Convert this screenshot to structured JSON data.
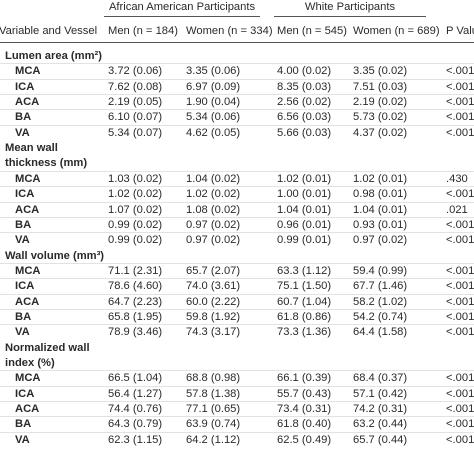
{
  "table": {
    "groups": [
      "African American Participants",
      "White Participants"
    ],
    "headers": [
      "Variable and Vessel",
      "Men (n = 184)",
      "Women (n = 334)",
      "Men (n = 545)",
      "Women (n = 689)",
      "P Value"
    ],
    "sections": [
      {
        "title": [
          "Lumen area (mm²)"
        ],
        "rows": [
          {
            "vessel": "MCA",
            "values": [
              "3.72 (0.06)",
              "3.35 (0.06)",
              "4.00 (0.02)",
              "3.35 (0.02)"
            ],
            "p": "<.001"
          },
          {
            "vessel": "ICA",
            "values": [
              "7.62 (0.08)",
              "6.97 (0.09)",
              "8.35 (0.03)",
              "7.51 (0.03)"
            ],
            "p": "<.001"
          },
          {
            "vessel": "ACA",
            "values": [
              "2.19 (0.05)",
              "1.90 (0.04)",
              "2.56 (0.02)",
              "2.19 (0.02)"
            ],
            "p": "<.001"
          },
          {
            "vessel": "BA",
            "values": [
              "6.10 (0.07)",
              "5.34 (0.06)",
              "6.56 (0.03)",
              "5.73 (0.02)"
            ],
            "p": "<.001"
          },
          {
            "vessel": "VA",
            "values": [
              "5.34 (0.07)",
              "4.62 (0.05)",
              "5.66 (0.03)",
              "4.37 (0.02)"
            ],
            "p": "<.001"
          }
        ]
      },
      {
        "title": [
          "Mean wall",
          "thickness (mm)"
        ],
        "rows": [
          {
            "vessel": "MCA",
            "values": [
              "1.03 (0.02)",
              "1.04 (0.02)",
              "1.02 (0.01)",
              "1.02 (0.01)"
            ],
            "p": ".430"
          },
          {
            "vessel": "ICA",
            "values": [
              "1.02 (0.02)",
              "1.02 (0.02)",
              "1.00 (0.01)",
              "0.98 (0.01)"
            ],
            "p": "<.001"
          },
          {
            "vessel": "ACA",
            "values": [
              "1.07 (0.02)",
              "1.08 (0.02)",
              "1.04 (0.01)",
              "1.04 (0.01)"
            ],
            "p": ".021"
          },
          {
            "vessel": "BA",
            "values": [
              "0.99 (0.02)",
              "0.97 (0.02)",
              "0.96 (0.01)",
              "0.93 (0.01)"
            ],
            "p": "<.001"
          },
          {
            "vessel": "VA",
            "values": [
              "0.99 (0.02)",
              "0.97 (0.02)",
              "0.99 (0.01)",
              "0.97 (0.02)"
            ],
            "p": "<.001"
          }
        ]
      },
      {
        "title": [
          "Wall volume (mm³)"
        ],
        "rows": [
          {
            "vessel": "MCA",
            "values": [
              "71.1 (2.31)",
              "65.7 (2.07)",
              "63.3 (1.12)",
              "59.4 (0.99)"
            ],
            "p": "<.001"
          },
          {
            "vessel": "ICA",
            "values": [
              "78.6 (4.60)",
              "74.0 (3.61)",
              "75.1 (1.50)",
              "67.7 (1.46)"
            ],
            "p": "<.001"
          },
          {
            "vessel": "ACA",
            "values": [
              "64.7 (2.23)",
              "60.0 (2.22)",
              "60.7 (1.04)",
              "58.2 (1.02)"
            ],
            "p": "<.001"
          },
          {
            "vessel": "BA",
            "values": [
              "65.8 (1.95)",
              "59.8 (1.92)",
              "61.8 (0.86)",
              "54.2 (0.74)"
            ],
            "p": "<.001"
          },
          {
            "vessel": "VA",
            "values": [
              "78.9 (3.46)",
              "74.3 (3.17)",
              "73.3 (1.36)",
              "64.4 (1.58)"
            ],
            "p": "<.001"
          }
        ]
      },
      {
        "title": [
          "Normalized wall",
          "index (%)"
        ],
        "rows": [
          {
            "vessel": "MCA",
            "values": [
              "66.5 (1.04)",
              "68.8 (0.98)",
              "66.1 (0.39)",
              "68.4 (0.37)"
            ],
            "p": "<.001"
          },
          {
            "vessel": "ICA",
            "values": [
              "56.4 (1.27)",
              "57.8 (1.38)",
              "55.7 (0.43)",
              "57.1 (0.42)"
            ],
            "p": "<.001"
          },
          {
            "vessel": "ACA",
            "values": [
              "74.4 (0.76)",
              "77.1 (0.65)",
              "73.4 (0.31)",
              "74.2 (0.31)"
            ],
            "p": "<.001"
          },
          {
            "vessel": "BA",
            "values": [
              "64.3 (0.79)",
              "63.9 (0.74)",
              "61.8 (0.40)",
              "63.2 (0.44)"
            ],
            "p": "<.001"
          },
          {
            "vessel": "VA",
            "values": [
              "62.3 (1.15)",
              "64.2 (1.12)",
              "62.5 (0.49)",
              "65.7 (0.44)"
            ],
            "p": "<.001"
          }
        ]
      }
    ]
  }
}
